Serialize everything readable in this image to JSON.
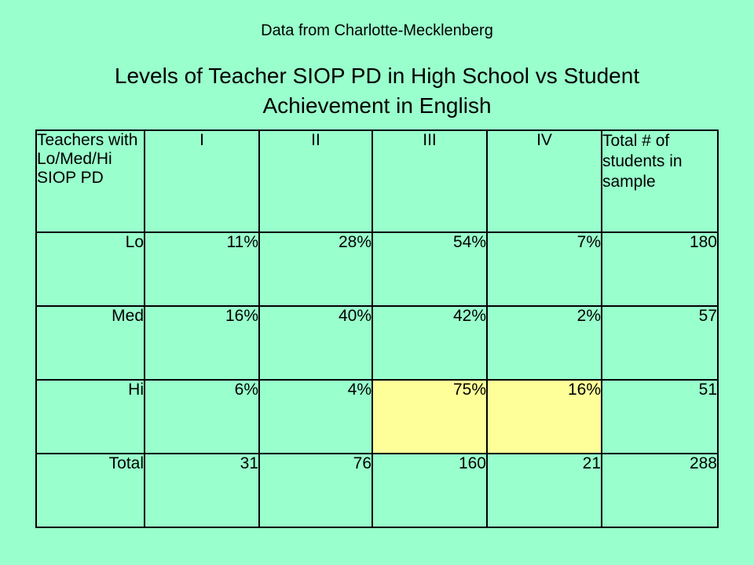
{
  "header": {
    "subtitle": "Data from Charlotte-Mecklenberg",
    "title": "Levels of Teacher SIOP PD in High School vs Student Achievement in English"
  },
  "table": {
    "corner_label": "Teachers with Lo/Med/Hi SIOP PD",
    "columns": [
      "I",
      "II",
      "III",
      "IV"
    ],
    "total_label": "Total # of students in sample",
    "rows": [
      {
        "label": "Lo",
        "cells": [
          "11%",
          "28%",
          "54%",
          "7%",
          "180"
        ]
      },
      {
        "label": "Med",
        "cells": [
          "16%",
          "40%",
          "42%",
          "2%",
          "57"
        ]
      },
      {
        "label": "Hi",
        "cells": [
          "6%",
          "4%",
          "75%",
          "16%",
          "51"
        ]
      },
      {
        "label": "Total",
        "cells": [
          "31",
          "76",
          "160",
          "21",
          "288"
        ]
      }
    ],
    "highlight_color": "#ffff99"
  },
  "colors": {
    "background": "#99ffcc",
    "highlight": "#ffff99"
  }
}
